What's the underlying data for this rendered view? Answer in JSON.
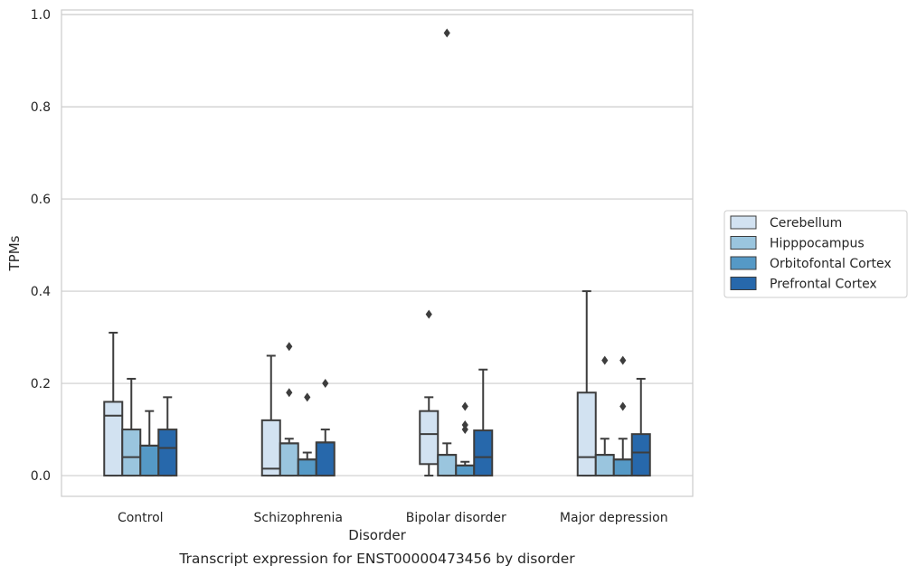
{
  "chart_data": {
    "type": "box",
    "title": "",
    "caption": "Transcript expression for ENST00000473456 by disorder",
    "xlabel": "Disorder",
    "ylabel": "TPMs",
    "ylim": [
      -0.045,
      1.01
    ],
    "yticks": [
      0.0,
      0.2,
      0.4,
      0.6,
      0.8,
      1.0
    ],
    "ytick_labels": [
      "0.0",
      "0.2",
      "0.4",
      "0.6",
      "0.8",
      "1.0"
    ],
    "grid": true,
    "legend_position": "right",
    "categories": [
      "Control",
      "Schizophrenia",
      "Bipolar disorder",
      "Major depression"
    ],
    "series": [
      {
        "name": "Cerebellum",
        "color": "#d2e2f1",
        "boxes": [
          {
            "q1": 0.0,
            "median": 0.13,
            "q3": 0.16,
            "whisker_low": 0.0,
            "whisker_high": 0.31,
            "outliers": []
          },
          {
            "q1": 0.0,
            "median": 0.015,
            "q3": 0.12,
            "whisker_low": 0.0,
            "whisker_high": 0.26,
            "outliers": []
          },
          {
            "q1": 0.025,
            "median": 0.09,
            "q3": 0.14,
            "whisker_low": 0.0,
            "whisker_high": 0.17,
            "outliers": [
              0.35
            ]
          },
          {
            "q1": 0.0,
            "median": 0.04,
            "q3": 0.18,
            "whisker_low": 0.0,
            "whisker_high": 0.4,
            "outliers": []
          }
        ]
      },
      {
        "name": "Hipppocampus",
        "color": "#9ac5de",
        "boxes": [
          {
            "q1": 0.0,
            "median": 0.04,
            "q3": 0.1,
            "whisker_low": 0.0,
            "whisker_high": 0.21,
            "outliers": []
          },
          {
            "q1": 0.0,
            "median": 0.07,
            "q3": 0.07,
            "whisker_low": 0.0,
            "whisker_high": 0.08,
            "outliers": [
              0.18,
              0.28
            ]
          },
          {
            "q1": 0.0,
            "median": 0.045,
            "q3": 0.045,
            "whisker_low": 0.0,
            "whisker_high": 0.07,
            "outliers": [
              0.96
            ]
          },
          {
            "q1": 0.0,
            "median": 0.045,
            "q3": 0.045,
            "whisker_low": 0.0,
            "whisker_high": 0.08,
            "outliers": [
              0.25
            ]
          }
        ]
      },
      {
        "name": "Orbitofontal Cortex",
        "color": "#5599c6",
        "boxes": [
          {
            "q1": 0.0,
            "median": 0.065,
            "q3": 0.065,
            "whisker_low": 0.0,
            "whisker_high": 0.14,
            "outliers": []
          },
          {
            "q1": 0.0,
            "median": 0.035,
            "q3": 0.035,
            "whisker_low": 0.0,
            "whisker_high": 0.05,
            "outliers": [
              0.17
            ]
          },
          {
            "q1": 0.0,
            "median": 0.022,
            "q3": 0.022,
            "whisker_low": 0.0,
            "whisker_high": 0.03,
            "outliers": [
              0.1,
              0.11,
              0.15
            ]
          },
          {
            "q1": 0.0,
            "median": 0.035,
            "q3": 0.035,
            "whisker_low": 0.0,
            "whisker_high": 0.08,
            "outliers": [
              0.15,
              0.25
            ]
          }
        ]
      },
      {
        "name": "Prefrontal Cortex",
        "color": "#2768ab",
        "boxes": [
          {
            "q1": 0.0,
            "median": 0.06,
            "q3": 0.1,
            "whisker_low": 0.0,
            "whisker_high": 0.17,
            "outliers": []
          },
          {
            "q1": 0.0,
            "median": 0.072,
            "q3": 0.072,
            "whisker_low": 0.0,
            "whisker_high": 0.1,
            "outliers": [
              0.2
            ]
          },
          {
            "q1": 0.0,
            "median": 0.04,
            "q3": 0.098,
            "whisker_low": 0.0,
            "whisker_high": 0.23,
            "outliers": []
          },
          {
            "q1": 0.0,
            "median": 0.05,
            "q3": 0.09,
            "whisker_low": 0.0,
            "whisker_high": 0.21,
            "outliers": []
          }
        ]
      }
    ]
  }
}
